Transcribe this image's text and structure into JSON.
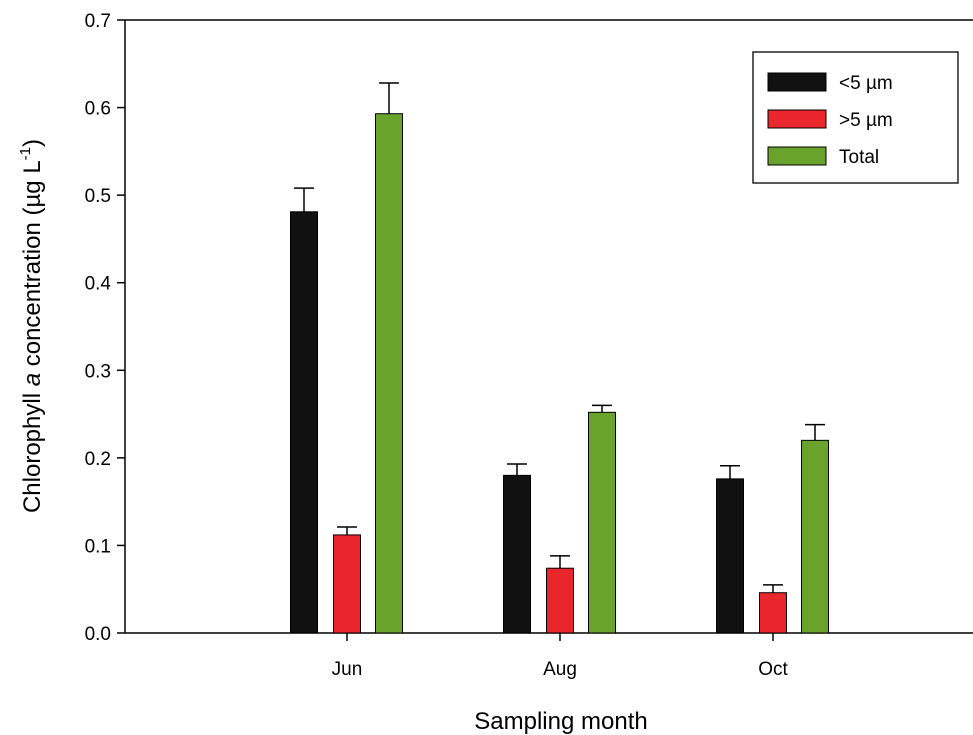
{
  "chart_data": {
    "type": "bar",
    "categories": [
      "Jun",
      "Aug",
      "Oct"
    ],
    "series": [
      {
        "name": "<5 µm",
        "values": [
          0.481,
          0.18,
          0.176
        ],
        "errors": [
          0.027,
          0.013,
          0.015
        ],
        "color": "#111111"
      },
      {
        "name": ">5 µm",
        "values": [
          0.112,
          0.074,
          0.046
        ],
        "errors": [
          0.009,
          0.014,
          0.009
        ],
        "color": "#e8262b"
      },
      {
        "name": "Total",
        "values": [
          0.593,
          0.252,
          0.22
        ],
        "errors": [
          0.035,
          0.008,
          0.018
        ],
        "color": "#6aa32c"
      }
    ],
    "xlabel": "Sampling month",
    "ylabel_parts": [
      "Chlorophyll ",
      "a",
      " concentration (µg L",
      "-1",
      ")"
    ],
    "ylim": [
      0,
      0.7
    ],
    "yticks": [
      "0.0",
      "0.1",
      "0.2",
      "0.3",
      "0.4",
      "0.5",
      "0.6",
      "0.7"
    ],
    "legend_position": "top-right",
    "grid": false
  }
}
